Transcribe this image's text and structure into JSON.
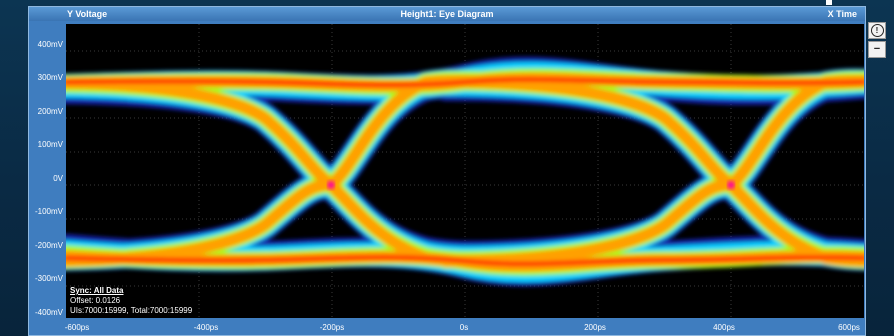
{
  "window": {
    "title_left": "Y Voltage",
    "title_center": "Height1: Eye Diagram",
    "title_right": "X Time"
  },
  "axes": {
    "y_labels": [
      "400mV",
      "300mV",
      "200mV",
      "100mV",
      "0V",
      "-100mV",
      "-200mV",
      "-300mV",
      "-400mV"
    ],
    "x_labels": [
      "-600ps",
      "-400ps",
      "-200ps",
      "0s",
      "200ps",
      "400ps",
      "600ps"
    ]
  },
  "stats": {
    "heading": "Sync: All Data",
    "offset": "Offset: 0.0126",
    "counts": "UIs:7000:15999, Total:7000:15999"
  },
  "side_buttons": [
    {
      "icon": "info-icon",
      "label": "!"
    },
    {
      "icon": "minus-icon",
      "label": "−"
    }
  ],
  "colors": {
    "window": "#3f7dbf",
    "plot_bg": "#000000",
    "hot": "#ff3000",
    "warm": "#ffa000",
    "mid": "#a0ff20",
    "cool": "#00d0ff",
    "cold": "#1a2bd6"
  }
}
